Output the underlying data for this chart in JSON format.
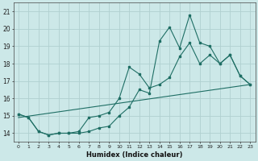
{
  "xlabel": "Humidex (Indice chaleur)",
  "xlim": [
    -0.5,
    23.5
  ],
  "ylim": [
    13.5,
    21.5
  ],
  "xticks": [
    0,
    1,
    2,
    3,
    4,
    5,
    6,
    7,
    8,
    9,
    10,
    11,
    12,
    13,
    14,
    15,
    16,
    17,
    18,
    19,
    20,
    21,
    22,
    23
  ],
  "yticks": [
    14,
    15,
    16,
    17,
    18,
    19,
    20,
    21
  ],
  "bg_color": "#cce8e8",
  "grid_color": "#b0d0d0",
  "line_color": "#1e6e64",
  "series1_x": [
    0,
    1,
    2,
    3,
    4,
    5,
    6,
    7,
    8,
    9,
    10,
    11,
    12,
    13,
    14,
    15,
    16,
    17,
    18,
    19,
    20,
    21,
    22,
    23
  ],
  "series1_y": [
    15.1,
    14.9,
    14.1,
    13.9,
    14.0,
    14.0,
    14.0,
    14.1,
    14.3,
    14.4,
    15.0,
    15.5,
    16.5,
    16.3,
    19.3,
    20.1,
    18.9,
    20.8,
    19.2,
    19.0,
    18.0,
    18.5,
    17.3,
    16.8
  ],
  "series2_x": [
    0,
    1,
    2,
    3,
    4,
    5,
    6,
    7,
    8,
    9,
    10,
    11,
    12,
    13,
    14,
    15,
    16,
    17,
    18,
    19,
    20,
    21,
    22,
    23
  ],
  "series2_y": [
    15.1,
    14.9,
    14.1,
    13.9,
    14.0,
    14.0,
    14.1,
    14.9,
    15.0,
    15.2,
    16.0,
    17.8,
    17.4,
    16.6,
    16.8,
    17.2,
    18.4,
    19.2,
    18.0,
    18.5,
    18.0,
    18.5,
    17.3,
    16.8
  ],
  "series3_x": [
    0,
    23
  ],
  "series3_y": [
    14.9,
    16.8
  ]
}
